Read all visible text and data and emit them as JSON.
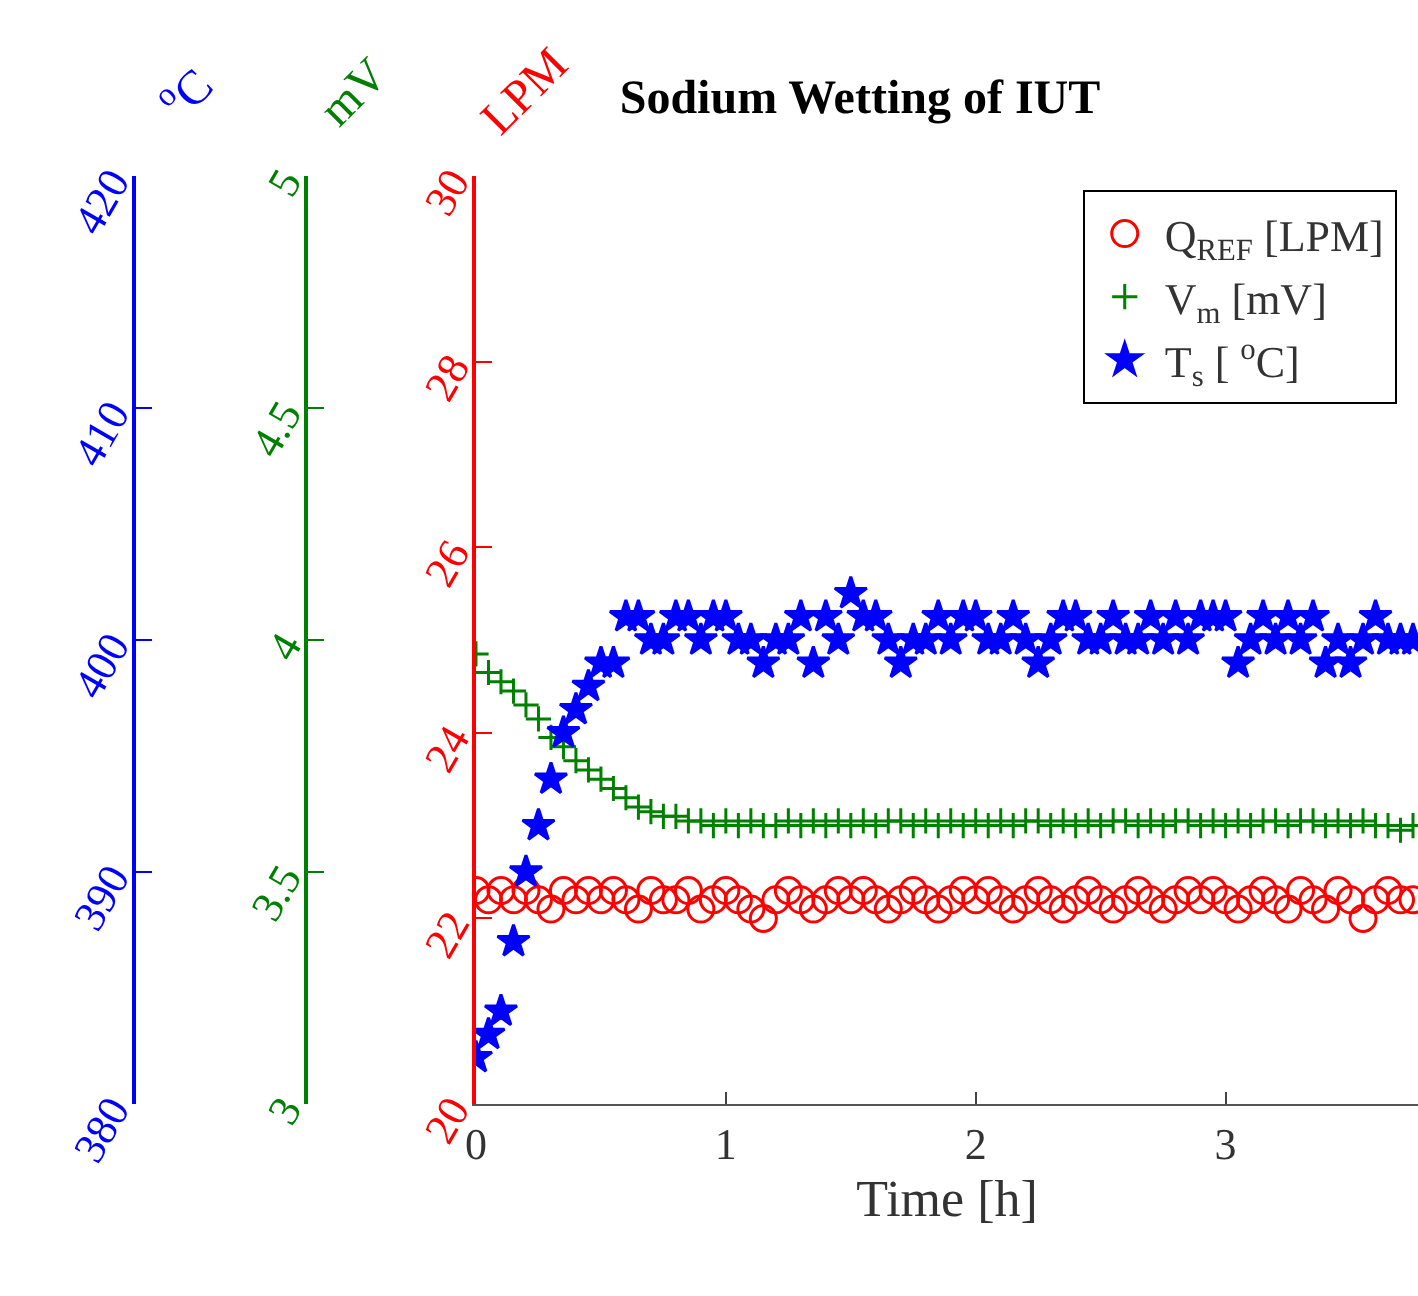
{
  "chart_data": {
    "type": "scatter",
    "title": "Sodium Wetting of IUT",
    "xlabel": "Time [h]",
    "ylabel": "LPM",
    "y2label": "mV",
    "y3label": "$^{o}$C",
    "x": [
      0,
      0.05,
      0.1,
      0.15,
      0.2,
      0.25,
      0.3,
      0.35,
      0.4,
      0.45,
      0.5,
      0.55,
      0.6,
      0.65,
      0.7,
      0.75,
      0.8,
      0.85,
      0.9,
      0.95,
      1,
      1.05,
      1.1,
      1.15,
      1.2,
      1.25,
      1.3,
      1.35,
      1.4,
      1.45,
      1.5,
      1.55,
      1.6,
      1.65,
      1.7,
      1.75,
      1.8,
      1.85,
      1.9,
      1.95,
      2,
      2.05,
      2.1,
      2.15,
      2.2,
      2.25,
      2.3,
      2.35,
      2.4,
      2.45,
      2.5,
      2.55,
      2.6,
      2.65,
      2.7,
      2.75,
      2.8,
      2.85,
      2.9,
      2.95,
      3,
      3.05,
      3.1,
      3.15,
      3.2,
      3.25,
      3.3,
      3.35,
      3.4,
      3.45,
      3.5,
      3.55,
      3.6,
      3.65,
      3.7,
      3.75
    ],
    "series": [
      {
        "name": "Q$_{REF}$ [LPM]",
        "color": "#ff0000",
        "marker": "circle",
        "values": [
          22.3,
          22.2,
          22.3,
          22.2,
          22.3,
          22.2,
          22.1,
          22.3,
          22.2,
          22.3,
          22.2,
          22.3,
          22.2,
          22.1,
          22.3,
          22.2,
          22.2,
          22.3,
          22.1,
          22.2,
          22.3,
          22.2,
          22.1,
          22.0,
          22.2,
          22.3,
          22.2,
          22.1,
          22.2,
          22.3,
          22.2,
          22.3,
          22.2,
          22.1,
          22.2,
          22.3,
          22.2,
          22.1,
          22.2,
          22.3,
          22.2,
          22.3,
          22.2,
          22.1,
          22.2,
          22.3,
          22.2,
          22.1,
          22.2,
          22.3,
          22.2,
          22.1,
          22.2,
          22.3,
          22.2,
          22.1,
          22.2,
          22.3,
          22.2,
          22.3,
          22.2,
          22.1,
          22.2,
          22.3,
          22.2,
          22.1,
          22.3,
          22.2,
          22.1,
          22.3,
          22.2,
          22.0,
          22.2,
          22.3,
          22.2,
          22.2
        ]
      },
      {
        "name": "V$_{m}$ [mV]",
        "color": "#008000",
        "marker": "cross",
        "axis": "y2",
        "values": [
          3.97,
          3.93,
          3.91,
          3.89,
          3.86,
          3.83,
          3.79,
          3.77,
          3.74,
          3.72,
          3.7,
          3.68,
          3.66,
          3.64,
          3.63,
          3.62,
          3.62,
          3.61,
          3.61,
          3.6,
          3.61,
          3.6,
          3.61,
          3.6,
          3.6,
          3.61,
          3.6,
          3.61,
          3.6,
          3.61,
          3.6,
          3.61,
          3.6,
          3.61,
          3.61,
          3.6,
          3.61,
          3.6,
          3.61,
          3.6,
          3.61,
          3.6,
          3.61,
          3.6,
          3.61,
          3.61,
          3.6,
          3.61,
          3.6,
          3.61,
          3.6,
          3.61,
          3.61,
          3.6,
          3.61,
          3.6,
          3.61,
          3.61,
          3.6,
          3.61,
          3.6,
          3.61,
          3.6,
          3.61,
          3.61,
          3.6,
          3.61,
          3.61,
          3.6,
          3.61,
          3.6,
          3.61,
          3.6,
          3.6,
          3.59,
          3.6
        ]
      },
      {
        "name": "T$_{s}$ [ $^{o}$C]",
        "color": "#0000ff",
        "marker": "star",
        "axis": "y3",
        "values": [
          382,
          383,
          384,
          387,
          390,
          392,
          394,
          396,
          397,
          398,
          399,
          399,
          401,
          401,
          400,
          400,
          401,
          401,
          400,
          401,
          401,
          400,
          400,
          399,
          400,
          400,
          401,
          399,
          401,
          400,
          402,
          401,
          401,
          400,
          399,
          400,
          400,
          401,
          400,
          401,
          401,
          400,
          400,
          401,
          400,
          399,
          400,
          401,
          401,
          400,
          400,
          401,
          400,
          400,
          401,
          400,
          401,
          400,
          401,
          401,
          401,
          399,
          400,
          401,
          400,
          401,
          400,
          401,
          399,
          400,
          399,
          400,
          401,
          400,
          400,
          400
        ]
      }
    ],
    "xlim": [
      0,
      3.77
    ],
    "xticks": [
      0,
      1,
      2,
      3
    ],
    "ylim": [
      20,
      30
    ],
    "yticks": [
      20,
      22,
      24,
      26,
      28,
      30
    ],
    "y2lim": [
      3,
      5
    ],
    "y2ticks": [
      3,
      3.5,
      4,
      4.5,
      5
    ],
    "y3lim": [
      380,
      420
    ],
    "y3ticks": [
      380,
      390,
      400,
      410,
      420
    ],
    "legend": "top right"
  }
}
